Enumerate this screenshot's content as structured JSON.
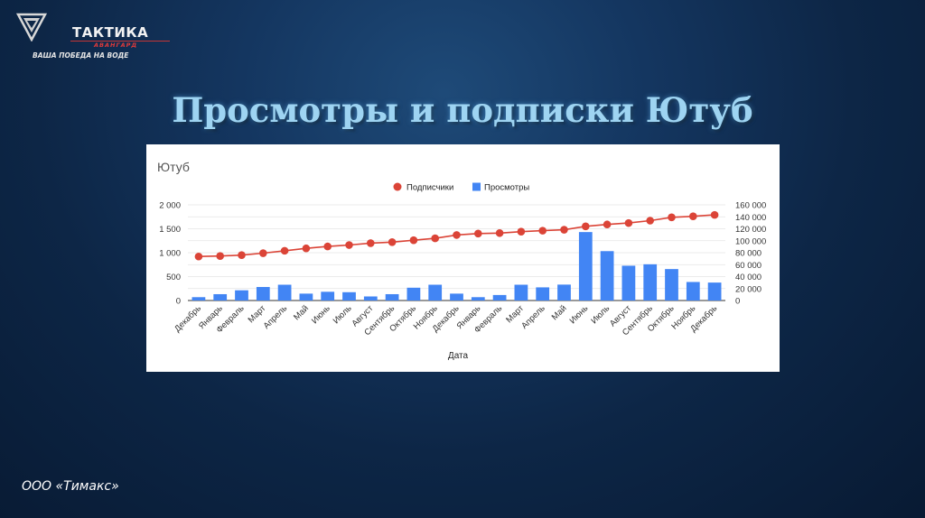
{
  "logo": {
    "name": "ТАКТИКА",
    "subname": "АВАНГАРД",
    "tagline": "ВАША ПОБЕДА НА ВОДЕ"
  },
  "slide_title": "Просмотры и подписки Ютуб",
  "footer": "ООО «Тимакс»",
  "colors": {
    "subscribers": "#db4437",
    "views": "#4285f4"
  },
  "chart_data": {
    "type": "bar",
    "title": "Ютуб",
    "xlabel": "Дата",
    "ylabel": "",
    "legend_position": "top",
    "grid": true,
    "categories": [
      "Декабрь",
      "Январь",
      "Февраль",
      "Март",
      "Апрель",
      "Май",
      "Июнь",
      "Июль",
      "Август",
      "Сентябрь",
      "Октябрь",
      "Ноябрь",
      "Декабрь",
      "Январь",
      "Февраль",
      "Март",
      "Апрель",
      "Май",
      "Июнь",
      "Июль",
      "Август",
      "Сентябрь",
      "Октябрь",
      "Ноябрь",
      "Декабрь"
    ],
    "left_axis": {
      "ylim": [
        0,
        2000
      ],
      "ticks": [
        "2 000",
        "1 500",
        "1 000",
        "500",
        "0"
      ]
    },
    "right_axis": {
      "ylim": [
        0,
        160000
      ],
      "ticks": [
        "160 000",
        "140 000",
        "120 000",
        "100 000",
        "80 000",
        "60 000",
        "40 000",
        "20 000",
        "0"
      ]
    },
    "series": [
      {
        "name": "Подписчики",
        "kind": "line",
        "axis": "left",
        "values": [
          920,
          930,
          950,
          990,
          1040,
          1090,
          1130,
          1160,
          1200,
          1220,
          1260,
          1300,
          1370,
          1400,
          1410,
          1440,
          1460,
          1480,
          1550,
          1590,
          1620,
          1670,
          1740,
          1760,
          1790
        ]
      },
      {
        "name": "Просмотры",
        "kind": "bar",
        "axis": "right",
        "values": [
          5600,
          10600,
          17100,
          22600,
          26400,
          11500,
          14600,
          13900,
          6800,
          10600,
          21400,
          26400,
          11500,
          5600,
          9200,
          26400,
          22000,
          26600,
          114500,
          82600,
          58200,
          60600,
          52600,
          31000,
          30000
        ]
      }
    ]
  }
}
